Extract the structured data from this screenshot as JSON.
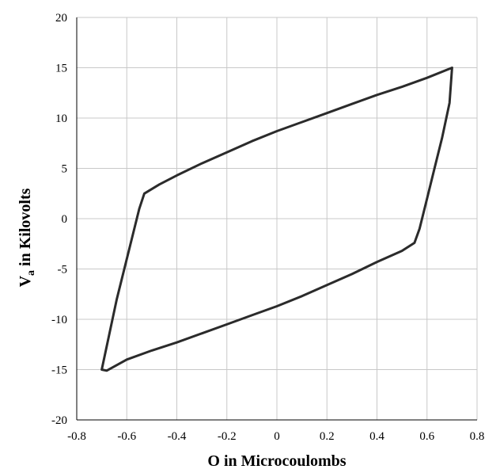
{
  "chart_data": {
    "type": "line",
    "title": "",
    "xlabel": "O in Microcoulombs",
    "ylabel_main": "V",
    "ylabel_sub": "a",
    "ylabel_rest": " in Kilovolts",
    "xlim": [
      -0.8,
      0.8
    ],
    "ylim": [
      -20,
      20
    ],
    "x_ticks": [
      -0.8,
      -0.6,
      -0.4,
      -0.2,
      0,
      0.2,
      0.4,
      0.6,
      0.8
    ],
    "x_tick_labels": [
      "-0.8",
      "-0.6",
      "-0.4",
      "-0.2",
      "0",
      "0.2",
      "0.4",
      "0.6",
      "0.8"
    ],
    "y_ticks": [
      -20,
      -15,
      -10,
      -5,
      0,
      5,
      10,
      15,
      20
    ],
    "y_tick_labels": [
      "-20",
      "-15",
      "-10",
      "-5",
      "0",
      "5",
      "10",
      "15",
      "20"
    ],
    "grid": true,
    "line_color": "#2b2b2b",
    "series": [
      {
        "x": [
          0.7,
          0.6,
          0.5,
          0.4,
          0.3,
          0.2,
          0.1,
          0.0,
          -0.1,
          -0.2,
          -0.3,
          -0.4,
          -0.47,
          -0.53,
          -0.55,
          -0.58,
          -0.61,
          -0.64,
          -0.67,
          -0.7,
          -0.68,
          -0.6,
          -0.5,
          -0.4,
          -0.3,
          -0.2,
          -0.1,
          0.0,
          0.1,
          0.2,
          0.3,
          0.4,
          0.5,
          0.55,
          0.57,
          0.6,
          0.63,
          0.66,
          0.69,
          0.7
        ],
        "y": [
          15.0,
          14.0,
          13.1,
          12.3,
          11.4,
          10.5,
          9.6,
          8.7,
          7.7,
          6.6,
          5.5,
          4.3,
          3.4,
          2.5,
          1.0,
          -2.0,
          -5.0,
          -8.0,
          -11.5,
          -15.0,
          -15.1,
          -14.0,
          -13.1,
          -12.3,
          -11.4,
          -10.5,
          -9.6,
          -8.7,
          -7.7,
          -6.6,
          -5.5,
          -4.3,
          -3.2,
          -2.4,
          -1.0,
          2.0,
          5.0,
          8.0,
          11.5,
          15.0
        ]
      }
    ]
  }
}
